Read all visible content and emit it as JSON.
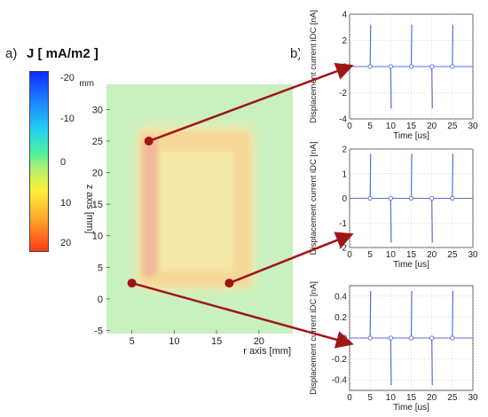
{
  "labels": {
    "a": "a)",
    "b": "b)"
  },
  "colorbar": {
    "title": "J [ mA/m2 ]",
    "ticks": [
      "-20",
      "-10",
      "0",
      "10",
      "20"
    ],
    "range": [
      -20,
      20
    ],
    "colors": [
      "#0a2cff",
      "#22d4f0",
      "#b8f068",
      "#ffef3a",
      "#ff3a1a"
    ]
  },
  "colors": {
    "trace": "#5a6fd8",
    "arrow": "#a01518",
    "dot": "#a01518",
    "background_field": "#c9f0c0",
    "current": "#f2b898"
  },
  "chart_data": [
    {
      "type": "heatmap",
      "xlabel": "r axis [mm]",
      "ylabel": "z axis [mm]",
      "unit_label": "mm",
      "xlim": [
        2,
        24
      ],
      "ylim": [
        -5.5,
        34
      ],
      "xticks": [
        "5",
        "10",
        "15",
        "20"
      ],
      "yticks": [
        "-5",
        "0",
        "5",
        "10",
        "15",
        "20",
        "25",
        "30"
      ],
      "feature": "rectangular loop of positive current density, inner r 7.5-17, z 4-24, outer r 5.5-19, z 2-27",
      "markers": [
        {
          "r": 7,
          "z": 25
        },
        {
          "r": 5,
          "z": 2.5
        },
        {
          "r": 16.5,
          "z": 2.5
        }
      ]
    },
    {
      "type": "line",
      "xlabel": "Time [us]",
      "ylabel": "Displacement current  iDC [nA]",
      "xlim": [
        0,
        30
      ],
      "ylim": [
        -4,
        4
      ],
      "xticks": [
        "0",
        "5",
        "10",
        "15",
        "20",
        "25",
        "30"
      ],
      "yticks": [
        "4",
        "2",
        "0",
        "-2",
        "-4"
      ],
      "spikes": [
        {
          "t": 5,
          "v": 3.2
        },
        {
          "t": 10,
          "v": -3.2
        },
        {
          "t": 15,
          "v": 3.2
        },
        {
          "t": 20,
          "v": -3.2
        },
        {
          "t": 25,
          "v": 3.2
        }
      ]
    },
    {
      "type": "line",
      "xlabel": "Time [us]",
      "ylabel": "Displacement current  iDC [nA]",
      "xlim": [
        0,
        30
      ],
      "ylim": [
        -2,
        2
      ],
      "xticks": [
        "0",
        "5",
        "10",
        "15",
        "20",
        "25",
        "30"
      ],
      "yticks": [
        "2",
        "1",
        "0",
        "-1",
        "-2"
      ],
      "spikes": [
        {
          "t": 5,
          "v": 1.8
        },
        {
          "t": 10,
          "v": -1.8
        },
        {
          "t": 15,
          "v": 1.8
        },
        {
          "t": 20,
          "v": -1.8
        },
        {
          "t": 25,
          "v": 1.8
        }
      ]
    },
    {
      "type": "line",
      "xlabel": "Time [us]",
      "ylabel": "Displacement current  iDC [nA]",
      "xlim": [
        0,
        30
      ],
      "ylim": [
        -0.5,
        0.5
      ],
      "xticks": [
        "0",
        "5",
        "10",
        "15",
        "20",
        "25",
        "30"
      ],
      "yticks": [
        "0.4",
        "0.2",
        "0",
        "-0.2",
        "-0.4"
      ],
      "spikes": [
        {
          "t": 5,
          "v": 0.45
        },
        {
          "t": 10,
          "v": -0.45
        },
        {
          "t": 15,
          "v": 0.45
        },
        {
          "t": 20,
          "v": -0.45
        },
        {
          "t": 25,
          "v": 0.45
        }
      ]
    }
  ]
}
